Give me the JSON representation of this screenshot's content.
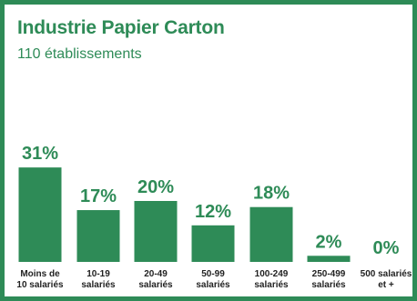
{
  "header": {
    "title": "Industrie Papier Carton",
    "subtitle": "110 établissements"
  },
  "colors": {
    "accent": "#2e8b57",
    "label": "#222222"
  },
  "chart_data": {
    "type": "bar",
    "title": "Industrie Papier Carton",
    "subtitle": "110 établissements",
    "categories": [
      [
        "Moins de",
        "10 salariés"
      ],
      [
        "10-19",
        "salariés"
      ],
      [
        "20-49",
        "salariés"
      ],
      [
        "50-99",
        "salariés"
      ],
      [
        "100-249",
        "salariés"
      ],
      [
        "250-499",
        "salariés"
      ],
      [
        "500 salariés",
        "et +"
      ]
    ],
    "values": [
      31,
      17,
      20,
      12,
      18,
      2,
      0
    ],
    "value_labels": [
      "31%",
      "17%",
      "20%",
      "12%",
      "18%",
      "2%",
      "0%"
    ],
    "unit": "%",
    "xlabel": "",
    "ylabel": "",
    "ylim": [
      0,
      31
    ],
    "grid": false,
    "legend": "none"
  }
}
